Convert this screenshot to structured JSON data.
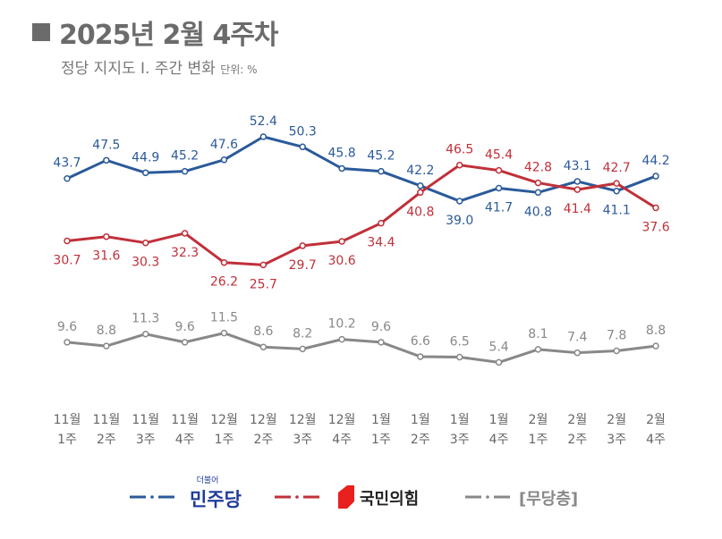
{
  "header": {
    "title": "2025년 2월 4주차",
    "subtitle": "정당 지지도 Ⅰ. 주간 변화",
    "unit": "단위: %"
  },
  "chart_data": {
    "type": "line",
    "title": "2025년 2월 4주차",
    "subtitle": "정당 지지도 Ⅰ. 주간 변화",
    "unit": "%",
    "categories": [
      [
        "11월",
        "1주"
      ],
      [
        "11월",
        "2주"
      ],
      [
        "11월",
        "3주"
      ],
      [
        "11월",
        "4주"
      ],
      [
        "12월",
        "1주"
      ],
      [
        "12월",
        "2주"
      ],
      [
        "12월",
        "3주"
      ],
      [
        "12월",
        "4주"
      ],
      [
        "1월",
        "1주"
      ],
      [
        "1월",
        "2주"
      ],
      [
        "1월",
        "3주"
      ],
      [
        "1월",
        "4주"
      ],
      [
        "2월",
        "1주"
      ],
      [
        "2월",
        "2주"
      ],
      [
        "2월",
        "3주"
      ],
      [
        "2월",
        "4주"
      ]
    ],
    "series": [
      {
        "name": "민주당",
        "logo_small": "더불어",
        "color": "#2b5a9a",
        "values": [
          43.7,
          47.5,
          44.9,
          45.2,
          47.6,
          52.4,
          50.3,
          45.8,
          45.2,
          42.2,
          39.0,
          41.7,
          40.8,
          43.1,
          41.1,
          44.2
        ]
      },
      {
        "name": "국민의힘",
        "color": "#c0303a",
        "values": [
          30.7,
          31.6,
          30.3,
          32.3,
          26.2,
          25.7,
          29.7,
          30.6,
          34.4,
          40.8,
          46.5,
          45.4,
          42.8,
          41.4,
          42.7,
          37.6
        ]
      },
      {
        "name": "[무당층]",
        "color": "#888888",
        "values": [
          9.6,
          8.8,
          11.3,
          9.6,
          11.5,
          8.6,
          8.2,
          10.2,
          9.6,
          6.6,
          6.5,
          5.4,
          8.1,
          7.4,
          7.8,
          8.8
        ]
      }
    ],
    "grid": false,
    "legend": "bottom"
  }
}
